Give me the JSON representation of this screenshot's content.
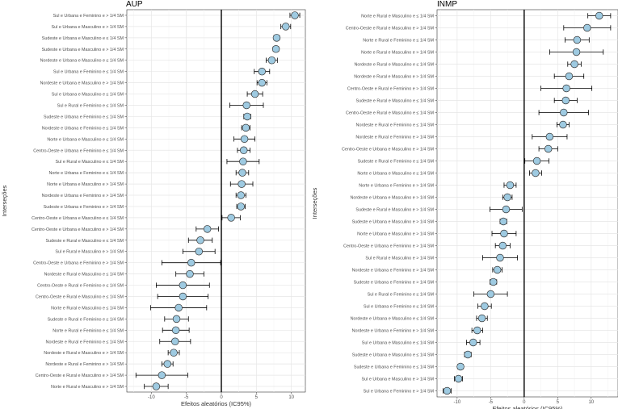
{
  "chart_data": [
    {
      "type": "scatter",
      "title": "AUP",
      "xlabel": "Efeitos aleatórios (IC95%)",
      "ylabel": "Interseções",
      "xlim": [
        -13.5,
        12
      ],
      "xticks": [
        -10,
        -5,
        0,
        5,
        10
      ],
      "reference_line_x": 0,
      "grid": true,
      "marker_color": "#9ecae1",
      "points": [
        {
          "label": "Sul e Urbana e Feminino e > 1/4 SM",
          "estimate": 10.5,
          "lower": 9.8,
          "upper": 11.2
        },
        {
          "label": "Sul e Urbana e Masculino e > 1/4 SM",
          "estimate": 9.2,
          "lower": 8.5,
          "upper": 9.9
        },
        {
          "label": "Sudeste e Urbana e Masculino e ≤ 1/4 SM",
          "estimate": 7.9,
          "lower": 7.5,
          "upper": 8.3
        },
        {
          "label": "Sudeste e Urbana e Masculino e > 1/4 SM",
          "estimate": 7.8,
          "lower": 7.4,
          "upper": 8.2
        },
        {
          "label": "Nordeste e Urbana e Masculino e ≤ 1/4 SM",
          "estimate": 7.2,
          "lower": 6.4,
          "upper": 8.0
        },
        {
          "label": "Sul e Urbana e Feminino e ≤ 1/4 SM",
          "estimate": 5.8,
          "lower": 4.7,
          "upper": 6.9
        },
        {
          "label": "Nordeste e Urbana e Masculino e > 1/4 SM",
          "estimate": 5.8,
          "lower": 5.1,
          "upper": 6.5
        },
        {
          "label": "Sul e Urbana e Masculino e ≤ 1/4 SM",
          "estimate": 4.8,
          "lower": 3.7,
          "upper": 5.9
        },
        {
          "label": "Sul e Rural e Feminino e ≤ 1/4 SM",
          "estimate": 3.6,
          "lower": 1.2,
          "upper": 6.0
        },
        {
          "label": "Sudeste e Urbana e Feminino e ≤ 1/4 SM",
          "estimate": 3.7,
          "lower": 3.2,
          "upper": 4.2
        },
        {
          "label": "Nordeste e Urbana e Feminino e ≤ 1/4 SM",
          "estimate": 3.5,
          "lower": 2.9,
          "upper": 4.1
        },
        {
          "label": "Norte e Urbana e Masculino e ≤ 1/4 SM",
          "estimate": 3.3,
          "lower": 1.8,
          "upper": 4.8
        },
        {
          "label": "Centro-Oeste e Urbana e Feminino e ≤ 1/4 SM",
          "estimate": 3.2,
          "lower": 2.3,
          "upper": 4.1
        },
        {
          "label": "Sul e Rural e Masculino e ≤ 1/4 SM",
          "estimate": 3.1,
          "lower": 0.8,
          "upper": 5.4
        },
        {
          "label": "Norte e Urbana e Feminino e ≤ 1/4 SM",
          "estimate": 3.0,
          "lower": 2.1,
          "upper": 3.9
        },
        {
          "label": "Norte e Urbana e Masculino e > 1/4 SM",
          "estimate": 2.9,
          "lower": 1.3,
          "upper": 4.5
        },
        {
          "label": "Nordeste e Urbana e Feminino e > 1/4 SM",
          "estimate": 2.8,
          "lower": 2.1,
          "upper": 3.5
        },
        {
          "label": "Sudeste e Urbana e Feminino e > 1/4 SM",
          "estimate": 2.8,
          "lower": 2.2,
          "upper": 3.4
        },
        {
          "label": "Centro-Oeste e Urbana e Masculino e ≤ 1/4 SM",
          "estimate": 1.4,
          "lower": 0.1,
          "upper": 2.7
        },
        {
          "label": "Centro-Oeste e Urbana e Masculino e > 1/4 SM",
          "estimate": -2.0,
          "lower": -3.6,
          "upper": -0.4
        },
        {
          "label": "Sudeste e Rural e Masculino e ≤ 1/4 SM",
          "estimate": -3.0,
          "lower": -4.7,
          "upper": -1.3
        },
        {
          "label": "Sul e Rural e Masculino e > 1/4 SM",
          "estimate": -3.2,
          "lower": -5.5,
          "upper": -0.9
        },
        {
          "label": "Centro-Oeste e Urbana e Feminino e > 1/4 SM",
          "estimate": -4.3,
          "lower": -8.5,
          "upper": -0.1
        },
        {
          "label": "Nordeste e Rural e Masculino e ≤ 1/4 SM",
          "estimate": -4.5,
          "lower": -6.5,
          "upper": -2.5
        },
        {
          "label": "Centro-Oeste e Rural e Feminino e ≤ 1/4 SM",
          "estimate": -5.5,
          "lower": -9.3,
          "upper": -1.7
        },
        {
          "label": "Centro-Oeste e Rural e Masculino e ≤ 1/4 SM",
          "estimate": -5.5,
          "lower": -9.1,
          "upper": -1.9
        },
        {
          "label": "Norte e Rural e Masculino e ≤ 1/4 SM",
          "estimate": -6.1,
          "lower": -10.1,
          "upper": -2.1
        },
        {
          "label": "Sudeste e Rural e Feminino e ≤ 1/4 SM",
          "estimate": -6.4,
          "lower": -8.1,
          "upper": -4.7
        },
        {
          "label": "Norte e Rural e Feminino e ≤ 1/4 SM",
          "estimate": -6.5,
          "lower": -8.4,
          "upper": -4.6
        },
        {
          "label": "Nordeste e Rural e Feminino e ≤ 1/4 SM",
          "estimate": -6.6,
          "lower": -8.8,
          "upper": -4.4
        },
        {
          "label": "Nordeste e Rural e Masculino e > 1/4 SM",
          "estimate": -6.8,
          "lower": -7.6,
          "upper": -6.0
        },
        {
          "label": "Nordeste e Rural e Feminino e > 1/4 SM",
          "estimate": -7.7,
          "lower": -8.5,
          "upper": -6.9
        },
        {
          "label": "Centro-Oeste e Rural e Masculino e > 1/4 SM",
          "estimate": -8.5,
          "lower": -12.2,
          "upper": -4.8
        },
        {
          "label": "Norte e Rural e Masculino e > 1/4 SM",
          "estimate": -9.3,
          "lower": -11.0,
          "upper": -7.6
        }
      ]
    },
    {
      "type": "scatter",
      "title": "INMP",
      "xlabel": "Efeitos aleatórios (IC95%)",
      "ylabel": "Interseções",
      "xlim": [
        -13,
        14
      ],
      "xticks": [
        -10,
        -5,
        0,
        5,
        10
      ],
      "reference_line_x": 0,
      "grid": true,
      "marker_color": "#9ecae1",
      "points": [
        {
          "label": "Norte e Rural e Masculino e ≤ 1/4 SM",
          "estimate": 11.2,
          "lower": 9.5,
          "upper": 12.9
        },
        {
          "label": "Centro-Oeste e Rural e Masculino e > 1/4 SM",
          "estimate": 9.4,
          "lower": 5.9,
          "upper": 12.9
        },
        {
          "label": "Norte e Rural e Feminino e ≤ 1/4 SM",
          "estimate": 7.9,
          "lower": 6.1,
          "upper": 9.7
        },
        {
          "label": "Norte e Rural e Masculino e > 1/4 SM",
          "estimate": 7.8,
          "lower": 3.8,
          "upper": 11.8
        },
        {
          "label": "Nordeste e Rural e Masculino e ≤ 1/4 SM",
          "estimate": 7.5,
          "lower": 6.5,
          "upper": 8.5
        },
        {
          "label": "Nordeste e Rural e Masculino e > 1/4 SM",
          "estimate": 6.7,
          "lower": 4.5,
          "upper": 8.9
        },
        {
          "label": "Centro-Oeste e Rural e Feminino e > 1/4 SM",
          "estimate": 6.3,
          "lower": 2.5,
          "upper": 10.1
        },
        {
          "label": "Sudeste e Rural e Masculino e ≤ 1/4 SM",
          "estimate": 6.2,
          "lower": 4.5,
          "upper": 7.9
        },
        {
          "label": "Centro-Oeste e Rural e Masculino e ≤ 1/4 SM",
          "estimate": 5.9,
          "lower": 2.2,
          "upper": 9.6
        },
        {
          "label": "Nordeste e Rural e Feminino e ≤ 1/4 SM",
          "estimate": 5.8,
          "lower": 4.9,
          "upper": 6.7
        },
        {
          "label": "Nordeste e Rural e Feminino e > 1/4 SM",
          "estimate": 3.8,
          "lower": 1.2,
          "upper": 6.4
        },
        {
          "label": "Centro-Oeste e Urbana e Masculino e > 1/4 SM",
          "estimate": 3.6,
          "lower": 2.2,
          "upper": 5.0
        },
        {
          "label": "Sudeste e Rural e Feminino e ≤ 1/4 SM",
          "estimate": 1.9,
          "lower": 0.1,
          "upper": 3.7
        },
        {
          "label": "Norte e Urbana e Masculino e ≤ 1/4 SM",
          "estimate": 1.7,
          "lower": 0.8,
          "upper": 2.6
        },
        {
          "label": "Norte e Urbana e Feminino e > 1/4 SM",
          "estimate": -2.1,
          "lower": -3.0,
          "upper": -1.2
        },
        {
          "label": "Nordeste e Urbana e Masculino e > 1/4 SM",
          "estimate": -2.5,
          "lower": -3.2,
          "upper": -1.8
        },
        {
          "label": "Sudeste e Rural e Masculino e > 1/4 SM",
          "estimate": -2.7,
          "lower": -5.1,
          "upper": -0.3
        },
        {
          "label": "Sudeste e Urbana e Masculino e > 1/4 SM",
          "estimate": -3.1,
          "lower": -3.6,
          "upper": -2.6
        },
        {
          "label": "Norte e Urbana e Masculino e > 1/4 SM",
          "estimate": -3.0,
          "lower": -4.8,
          "upper": -1.2
        },
        {
          "label": "Centro-Oeste e Urbana e Feminino e > 1/4 SM",
          "estimate": -3.2,
          "lower": -4.3,
          "upper": -2.1
        },
        {
          "label": "Sul e Rural e Masculino e > 1/4 SM",
          "estimate": -3.6,
          "lower": -6.2,
          "upper": -1.0
        },
        {
          "label": "Nordeste e Urbana e Feminino e > 1/4 SM",
          "estimate": -4.0,
          "lower": -4.7,
          "upper": -3.3
        },
        {
          "label": "Sudeste e Urbana e Feminino e > 1/4 SM",
          "estimate": -4.6,
          "lower": -5.1,
          "upper": -4.1
        },
        {
          "label": "Sul e Rural e Feminino e ≤ 1/4 SM",
          "estimate": -5.0,
          "lower": -7.5,
          "upper": -2.5
        },
        {
          "label": "Sul e Urbana e Feminino e ≤ 1/4 SM",
          "estimate": -5.9,
          "lower": -6.9,
          "upper": -4.9
        },
        {
          "label": "Nordeste e Urbana e Masculino e ≤ 1/4 SM",
          "estimate": -6.3,
          "lower": -7.1,
          "upper": -5.5
        },
        {
          "label": "Nordeste e Urbana e Feminino e > 1/4 SM",
          "estimate": -7.0,
          "lower": -7.8,
          "upper": -6.2
        },
        {
          "label": "Sul e Urbana e Masculino e ≤ 1/4 SM",
          "estimate": -7.6,
          "lower": -8.6,
          "upper": -6.6
        },
        {
          "label": "Sudeste e Urbana e Masculino e ≤ 1/4 SM",
          "estimate": -8.4,
          "lower": -8.9,
          "upper": -7.9
        },
        {
          "label": "Sudeste e Urbana e Feminino e ≤ 1/4 SM",
          "estimate": -9.5,
          "lower": -9.9,
          "upper": -9.1
        },
        {
          "label": "Sul e Urbana e Masculino e > 1/4 SM",
          "estimate": -9.8,
          "lower": -10.4,
          "upper": -9.2
        },
        {
          "label": "Sul e Urbana e Feminino e > 1/4 SM",
          "estimate": -11.5,
          "lower": -12.1,
          "upper": -10.9
        }
      ]
    }
  ]
}
